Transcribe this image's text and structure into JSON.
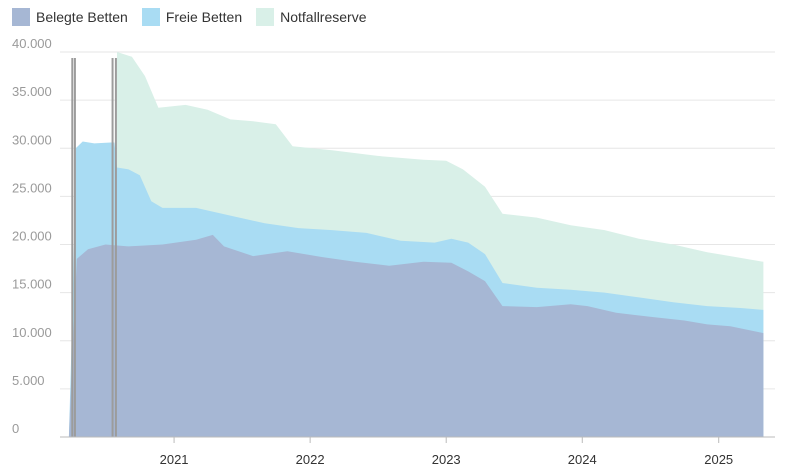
{
  "colors": {
    "belegt": "#a6b7d4",
    "frei": "#a9dcf3",
    "reserve": "#d9f0e8",
    "grid": "#e6e6e6",
    "axis": "#bbbbbb",
    "marker": "#9c9c9c"
  },
  "legend": [
    {
      "key": "belegt",
      "label": "Belegte Betten"
    },
    {
      "key": "frei",
      "label": "Freie Betten"
    },
    {
      "key": "reserve",
      "label": "Notfallreserve"
    }
  ],
  "chart_data": {
    "type": "area",
    "stacked": false,
    "title": "",
    "xlabel": "",
    "ylabel": "",
    "ylim": [
      0,
      40000
    ],
    "yticks": [
      0,
      5000,
      10000,
      15000,
      20000,
      25000,
      30000,
      35000,
      40000
    ],
    "ytick_labels": [
      "0",
      "5.000",
      "10.000",
      "15.000",
      "20.000",
      "25.000",
      "30.000",
      "35.000",
      "40.000"
    ],
    "xlim": [
      "2020-03-01",
      "2025-06-01"
    ],
    "xticks": [
      "2021-01-01",
      "2022-01-01",
      "2023-01-01",
      "2024-01-01",
      "2025-01-01"
    ],
    "xtick_labels": [
      "2021",
      "2022",
      "2023",
      "2024",
      "2025"
    ],
    "grid": true,
    "legend_position": "top-left",
    "markers": [
      "2020-04-03",
      "2020-04-10",
      "2020-07-20",
      "2020-07-29"
    ],
    "series": [
      {
        "name": "Notfallreserve",
        "key": "reserve",
        "points": [
          [
            "2020-08-01",
            40000
          ],
          [
            "2020-09-10",
            39500
          ],
          [
            "2020-10-15",
            37500
          ],
          [
            "2020-11-20",
            34200
          ],
          [
            "2021-02-01",
            34500
          ],
          [
            "2021-04-01",
            34000
          ],
          [
            "2021-06-01",
            33000
          ],
          [
            "2021-08-01",
            32800
          ],
          [
            "2021-10-01",
            32500
          ],
          [
            "2021-11-15",
            30200
          ],
          [
            "2022-03-01",
            29800
          ],
          [
            "2022-07-01",
            29200
          ],
          [
            "2022-11-01",
            28800
          ],
          [
            "2023-01-01",
            28700
          ],
          [
            "2023-02-15",
            27800
          ],
          [
            "2023-04-15",
            26000
          ],
          [
            "2023-06-01",
            23200
          ],
          [
            "2023-09-01",
            22800
          ],
          [
            "2023-12-01",
            22000
          ],
          [
            "2024-03-01",
            21500
          ],
          [
            "2024-06-01",
            20600
          ],
          [
            "2024-09-01",
            20000
          ],
          [
            "2024-12-01",
            19200
          ],
          [
            "2025-02-01",
            18800
          ],
          [
            "2025-05-01",
            18200
          ]
        ]
      },
      {
        "name": "Freie Betten",
        "key": "frei",
        "points": [
          [
            "2020-03-25",
            0
          ],
          [
            "2020-04-01",
            10000
          ],
          [
            "2020-04-08",
            21000
          ],
          [
            "2020-04-12",
            30000
          ],
          [
            "2020-05-01",
            30700
          ],
          [
            "2020-06-01",
            30500
          ],
          [
            "2020-07-15",
            30600
          ],
          [
            "2020-07-25",
            30600
          ],
          [
            "2020-08-01",
            28000
          ],
          [
            "2020-09-01",
            27800
          ],
          [
            "2020-10-01",
            27200
          ],
          [
            "2020-11-01",
            24500
          ],
          [
            "2020-12-01",
            23800
          ],
          [
            "2021-03-01",
            23800
          ],
          [
            "2021-06-01",
            23000
          ],
          [
            "2021-09-01",
            22200
          ],
          [
            "2021-12-01",
            21700
          ],
          [
            "2022-03-01",
            21500
          ],
          [
            "2022-06-01",
            21200
          ],
          [
            "2022-09-01",
            20400
          ],
          [
            "2022-12-01",
            20200
          ],
          [
            "2023-01-15",
            20600
          ],
          [
            "2023-03-01",
            20200
          ],
          [
            "2023-04-15",
            19000
          ],
          [
            "2023-06-01",
            16000
          ],
          [
            "2023-09-01",
            15500
          ],
          [
            "2023-12-01",
            15300
          ],
          [
            "2024-03-01",
            15000
          ],
          [
            "2024-06-01",
            14500
          ],
          [
            "2024-09-01",
            14000
          ],
          [
            "2024-12-01",
            13600
          ],
          [
            "2025-03-01",
            13400
          ],
          [
            "2025-05-01",
            13200
          ]
        ]
      },
      {
        "name": "Belegte Betten",
        "key": "belegt",
        "points": [
          [
            "2020-03-25",
            0
          ],
          [
            "2020-04-01",
            7000
          ],
          [
            "2020-04-08",
            12500
          ],
          [
            "2020-04-15",
            18500
          ],
          [
            "2020-05-15",
            19500
          ],
          [
            "2020-07-01",
            20000
          ],
          [
            "2020-09-01",
            19800
          ],
          [
            "2020-12-01",
            20000
          ],
          [
            "2021-03-01",
            20500
          ],
          [
            "2021-04-15",
            21000
          ],
          [
            "2021-05-15",
            19800
          ],
          [
            "2021-08-01",
            18800
          ],
          [
            "2021-11-01",
            19300
          ],
          [
            "2022-02-01",
            18700
          ],
          [
            "2022-05-01",
            18200
          ],
          [
            "2022-08-01",
            17800
          ],
          [
            "2022-11-01",
            18200
          ],
          [
            "2023-01-15",
            18100
          ],
          [
            "2023-03-01",
            17200
          ],
          [
            "2023-04-15",
            16200
          ],
          [
            "2023-06-01",
            13600
          ],
          [
            "2023-09-01",
            13500
          ],
          [
            "2023-12-01",
            13800
          ],
          [
            "2024-01-15",
            13600
          ],
          [
            "2024-04-01",
            12900
          ],
          [
            "2024-07-01",
            12500
          ],
          [
            "2024-10-01",
            12100
          ],
          [
            "2024-12-01",
            11700
          ],
          [
            "2025-02-01",
            11500
          ],
          [
            "2025-05-01",
            10800
          ]
        ]
      }
    ]
  }
}
